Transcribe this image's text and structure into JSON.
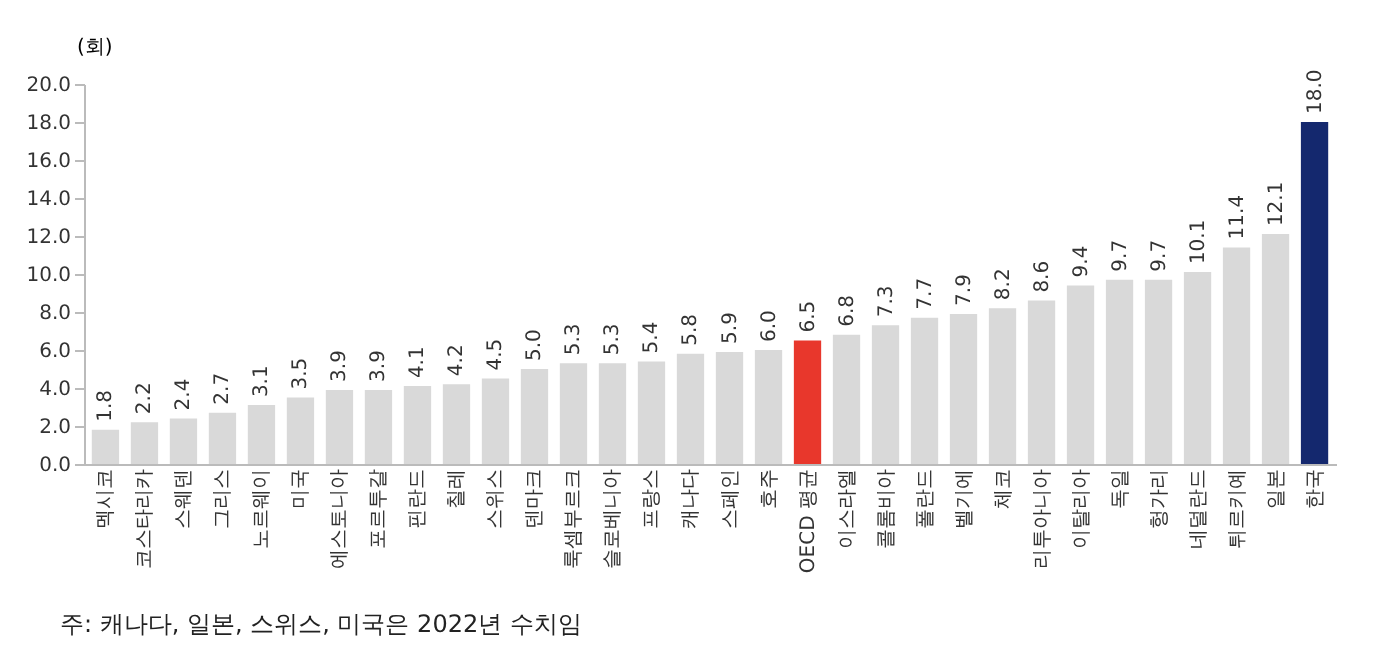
{
  "chart_data": {
    "type": "bar",
    "ylabel": "(회)",
    "categories": [
      "멕시코",
      "코스타리카",
      "스웨덴",
      "그리스",
      "노르웨이",
      "미국",
      "에스토니아",
      "포르투갈",
      "핀란드",
      "칠레",
      "스위스",
      "덴마크",
      "룩셈부르크",
      "슬로베니아",
      "프랑스",
      "캐나다",
      "스페인",
      "호주",
      "OECD 평균",
      "이스라엘",
      "콜롬비아",
      "폴란드",
      "벨기에",
      "체코",
      "리투아니아",
      "이탈리아",
      "독일",
      "헝가리",
      "네덜란드",
      "튀르키예",
      "일본",
      "한국"
    ],
    "values": [
      1.8,
      2.2,
      2.4,
      2.7,
      3.1,
      3.5,
      3.9,
      3.9,
      4.1,
      4.2,
      4.5,
      5.0,
      5.3,
      5.3,
      5.4,
      5.8,
      5.9,
      6.0,
      6.5,
      6.8,
      7.3,
      7.7,
      7.9,
      8.2,
      8.6,
      9.4,
      9.7,
      9.7,
      10.1,
      11.4,
      12.1,
      18.0
    ],
    "value_labels": [
      "1.8",
      "2.2",
      "2.4",
      "2.7",
      "3.1",
      "3.5",
      "3.9",
      "3.9",
      "4.1",
      "4.2",
      "4.5",
      "5.0",
      "5.3",
      "5.3",
      "5.4",
      "5.8",
      "5.9",
      "6.0",
      "6.5",
      "6.8",
      "7.3",
      "7.7",
      "7.9",
      "8.2",
      "8.6",
      "9.4",
      "9.7",
      "9.7",
      "10.1",
      "11.4",
      "12.1",
      "18.0"
    ],
    "colors": [
      "#d9d9d9",
      "#d9d9d9",
      "#d9d9d9",
      "#d9d9d9",
      "#d9d9d9",
      "#d9d9d9",
      "#d9d9d9",
      "#d9d9d9",
      "#d9d9d9",
      "#d9d9d9",
      "#d9d9d9",
      "#d9d9d9",
      "#d9d9d9",
      "#d9d9d9",
      "#d9d9d9",
      "#d9d9d9",
      "#d9d9d9",
      "#d9d9d9",
      "#e8372c",
      "#d9d9d9",
      "#d9d9d9",
      "#d9d9d9",
      "#d9d9d9",
      "#d9d9d9",
      "#d9d9d9",
      "#d9d9d9",
      "#d9d9d9",
      "#d9d9d9",
      "#d9d9d9",
      "#d9d9d9",
      "#d9d9d9",
      "#14286e"
    ],
    "ylim": [
      0,
      20
    ],
    "yticks": [
      {
        "value": 0,
        "label": "0.0"
      },
      {
        "value": 2,
        "label": "2.0"
      },
      {
        "value": 4,
        "label": "4.0"
      },
      {
        "value": 6,
        "label": "6.0"
      },
      {
        "value": 8,
        "label": "8.0"
      },
      {
        "value": 10,
        "label": "10.0"
      },
      {
        "value": 12,
        "label": "12.0"
      },
      {
        "value": 14,
        "label": "14.0"
      },
      {
        "value": 16,
        "label": "16.0"
      },
      {
        "value": 18,
        "label": "18.0"
      },
      {
        "value": 20,
        "label": "20.0"
      }
    ],
    "grid": false,
    "annotations": [
      "주: 캐나다, 일본, 스위스, 미국은 2022년 수치임"
    ]
  }
}
